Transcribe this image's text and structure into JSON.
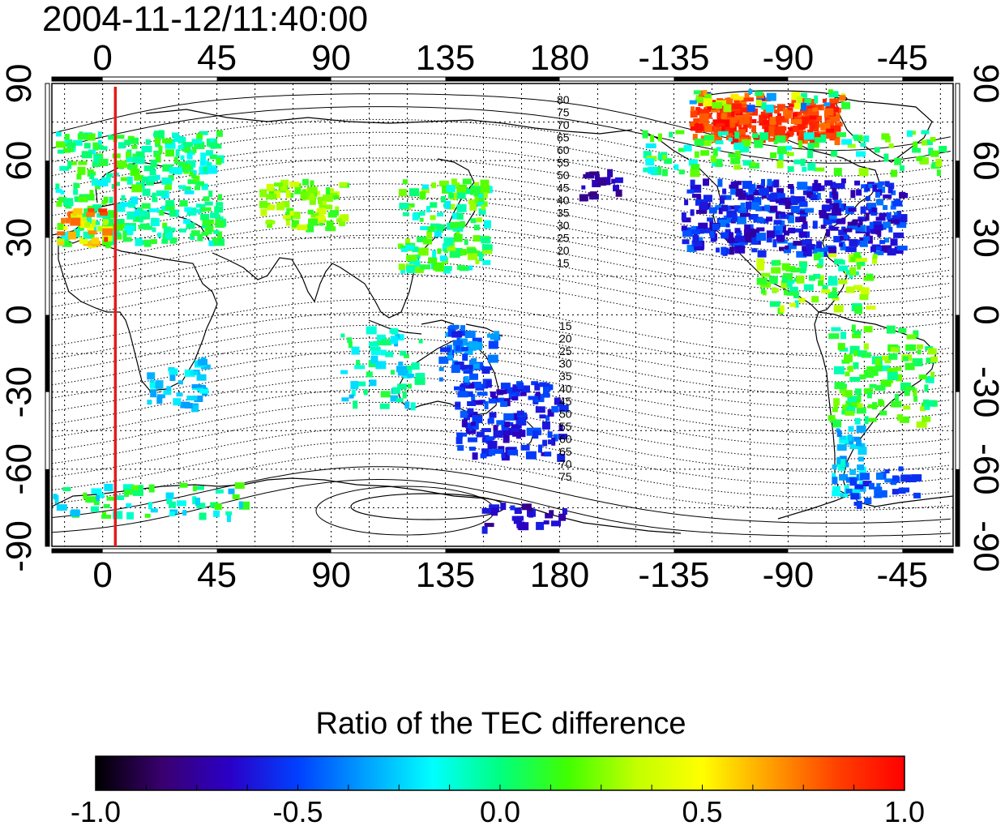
{
  "timestamp": "2004-11-12/11:40:00",
  "map": {
    "lon_ticks": [
      {
        "lon": 0,
        "label": "0"
      },
      {
        "lon": 45,
        "label": "45"
      },
      {
        "lon": 90,
        "label": "90"
      },
      {
        "lon": 135,
        "label": "135"
      },
      {
        "lon": 180,
        "label": "180"
      },
      {
        "lon": 225,
        "label": "-135"
      },
      {
        "lon": 270,
        "label": "-90"
      },
      {
        "lon": 315,
        "label": "-45"
      }
    ],
    "lat_ticks": [
      {
        "lat": 90,
        "label": "90"
      },
      {
        "lat": 60,
        "label": "60"
      },
      {
        "lat": 30,
        "label": "30"
      },
      {
        "lat": 0,
        "label": "0"
      },
      {
        "lat": -30,
        "label": "-30"
      },
      {
        "lat": -60,
        "label": "-60"
      },
      {
        "lat": -90,
        "label": "-90"
      }
    ],
    "lon_range": [
      -20,
      335
    ],
    "lat_range": [
      -90,
      90
    ],
    "grid": true,
    "marker_line_lon": 5,
    "marker_line_color": "#e41a1c",
    "contour_labels_north": [
      "80",
      "75",
      "70",
      "65",
      "60",
      "55",
      "50",
      "45",
      "40",
      "35",
      "30",
      "25",
      "20",
      "15"
    ],
    "contour_labels_south": [
      "15",
      "20",
      "25",
      "30",
      "35",
      "40",
      "45",
      "50",
      "55",
      "60",
      "65",
      "70",
      "75"
    ]
  },
  "colorbar": {
    "title": "Ratio of the TEC difference",
    "range": [
      -1.0,
      1.0
    ],
    "tick_labels": [
      "-1.0",
      "-0.5",
      "0.0",
      "0.5",
      "1.0"
    ],
    "tick_values": [
      -1.0,
      -0.5,
      0.0,
      0.5,
      1.0
    ],
    "colors": [
      "#000000",
      "#3a0070",
      "#2a00c8",
      "#0040ff",
      "#00a0ff",
      "#00ffff",
      "#00ff80",
      "#40ff00",
      "#c0ff00",
      "#ffff00",
      "#ffa000",
      "#ff4000",
      "#ff0000"
    ]
  }
}
